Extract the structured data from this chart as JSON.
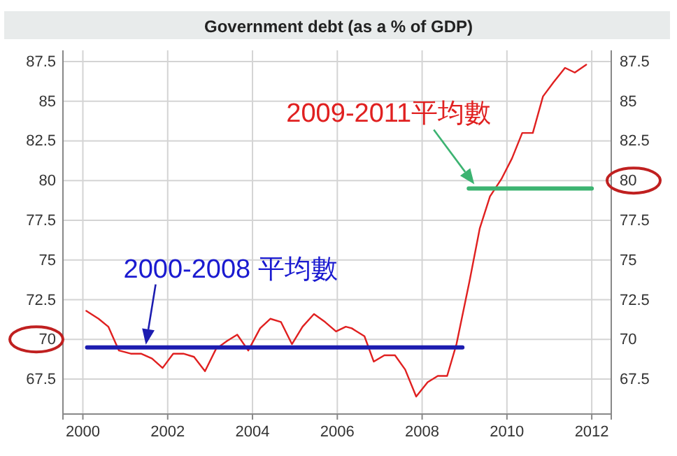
{
  "chart_data": {
    "type": "line",
    "title": "Government debt (as a % of GDP)",
    "xlim": [
      1999.53,
      2012.46
    ],
    "xticks": [
      2000,
      2002,
      2004,
      2006,
      2008,
      2010,
      2012
    ],
    "ylim": [
      65.3,
      88.2
    ],
    "yticks": [
      67.5,
      70,
      72.5,
      75,
      77.5,
      80,
      82.5,
      85,
      87.5
    ],
    "y2lim": [
      65.3,
      88.2
    ],
    "y2ticks": [
      67.5,
      70,
      72.5,
      75,
      77.5,
      80,
      82.5,
      85,
      87.5
    ],
    "grid": true,
    "line_style": "solid",
    "marker": "none",
    "series": [
      {
        "color": "#e02020",
        "x": [
          2000.08,
          2000.37,
          2000.6,
          2000.85,
          2001.13,
          2001.37,
          2001.63,
          2001.88,
          2002.13,
          2002.37,
          2002.62,
          2002.88,
          2003.14,
          2003.4,
          2003.64,
          2003.9,
          2004.18,
          2004.42,
          2004.67,
          2004.93,
          2005.18,
          2005.45,
          2005.71,
          2005.97,
          2006.2,
          2006.34,
          2006.64,
          2006.86,
          2007.11,
          2007.36,
          2007.6,
          2007.86,
          2008.13,
          2008.37,
          2008.59,
          2008.81,
          2009.12,
          2009.36,
          2009.6,
          2009.87,
          2010.12,
          2010.36,
          2010.61,
          2010.85,
          2011.1,
          2011.37,
          2011.6,
          2011.87
        ],
        "values": [
          71.8,
          71.3,
          70.8,
          69.3,
          69.1,
          69.1,
          68.8,
          68.2,
          69.1,
          69.1,
          68.9,
          68,
          69.4,
          69.9,
          70.3,
          69.3,
          70.7,
          71.3,
          71.1,
          69.7,
          70.8,
          71.6,
          71.1,
          70.5,
          70.8,
          70.7,
          70.2,
          68.6,
          69,
          69,
          68.1,
          66.4,
          67.3,
          67.7,
          67.7,
          69.7,
          73.7,
          77,
          79,
          80.1,
          81.4,
          83,
          83,
          85.3,
          86.2,
          87.1,
          86.8,
          87.3
        ]
      },
      {
        "name": "2000-2008 平均數",
        "color": "#1c1cb0",
        "x": [
          2000.1,
          2008.95
        ],
        "values": [
          69.5,
          69.5
        ]
      },
      {
        "name": "2009-2011平均數",
        "color": "#3cb371",
        "x": [
          2009.1,
          2012
        ],
        "values": [
          79.5,
          79.5
        ]
      }
    ]
  }
}
